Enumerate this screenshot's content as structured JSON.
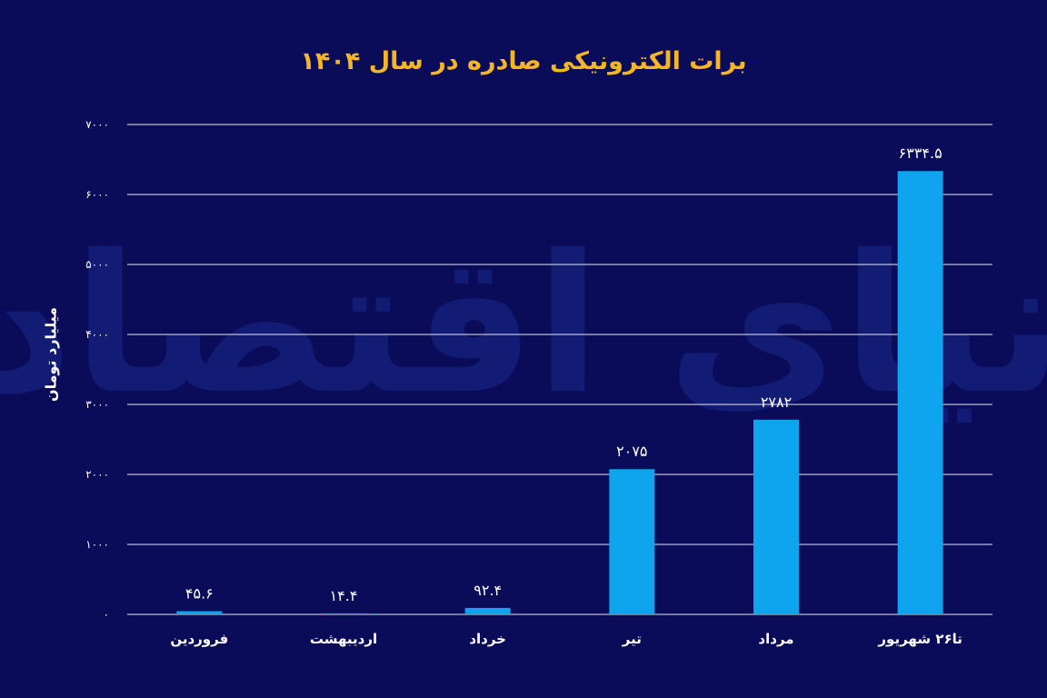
{
  "chart_data": {
    "type": "bar",
    "title": "برات الکترونیکی صادره در سال ۱۴۰۴",
    "ylabel": "میلیارد تومان",
    "xlabel": "",
    "ylim": [
      0,
      7000
    ],
    "yticks": [
      0,
      1000,
      2000,
      3000,
      4000,
      5000,
      6000,
      7000
    ],
    "ytick_labels": [
      "۰",
      "۱۰۰۰",
      "۲۰۰۰",
      "۳۰۰۰",
      "۴۰۰۰",
      "۵۰۰۰",
      "۶۰۰۰",
      "۷۰۰۰"
    ],
    "categories": [
      "فروردین",
      "اردیبهشت",
      "خرداد",
      "تیر",
      "مرداد",
      "تا۲۶ شهریور"
    ],
    "values": [
      45.6,
      14.4,
      92.4,
      2075,
      2782,
      6334.5
    ],
    "value_labels": [
      "۴۵.۶",
      "۱۴.۴",
      "۹۲.۴",
      "۲۰۷۵",
      "۲۷۸۲",
      "۶۳۳۴.۵"
    ],
    "grid": true,
    "bar_color": "#0ea5ee",
    "watermark": "دنیای اقتصاد"
  }
}
